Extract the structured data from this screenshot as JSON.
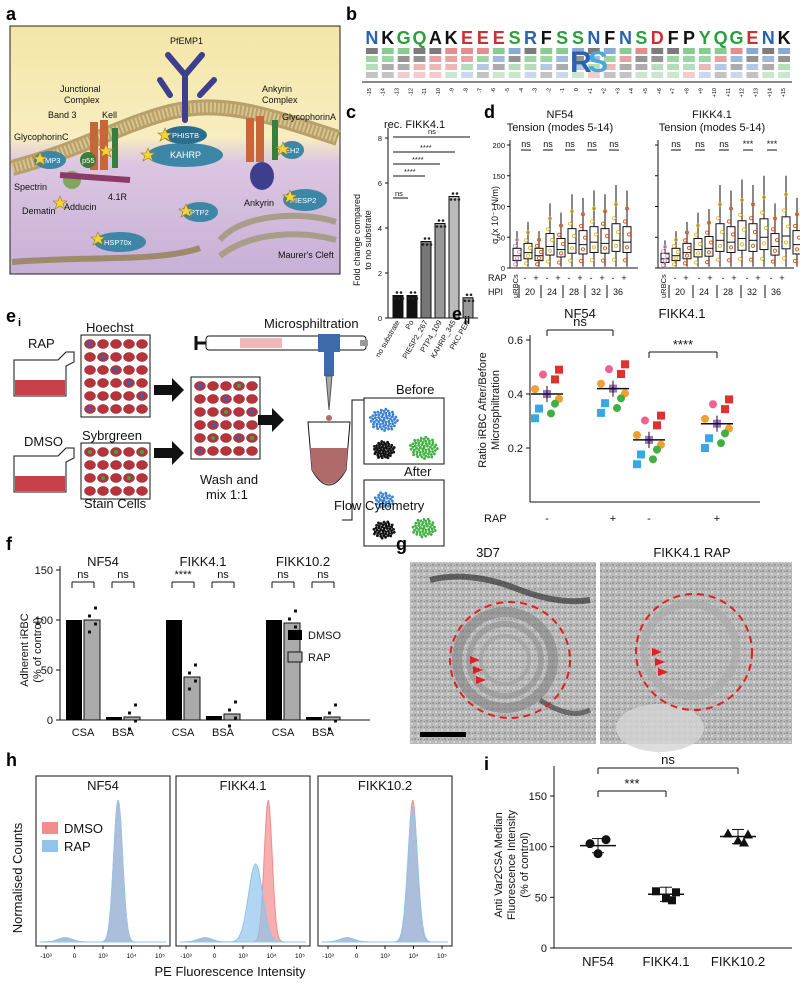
{
  "panels": {
    "a": {
      "letter": "a",
      "labels": {
        "pfemp1": "PfEMP1",
        "junctional": "Junctional",
        "complex_j": "Complex",
        "ankyrin_complex": "Ankyrin",
        "complex_a": "Complex",
        "band3": "Band 3",
        "kell": "Kell",
        "glycophorin_c": "GlycophorinC",
        "glycophorin_a": "GlycophorinA",
        "phistb": "PHISTB",
        "kahrp": "KAHRP",
        "emp3": "EMP3",
        "p55": "p55",
        "spectrin": "Spectrin",
        "r41": "4.1R",
        "adducin": "Adducin",
        "dematin": "Dematin",
        "ankyrin": "Ankyrin",
        "eh2": "EH2",
        "ptp2": "PTP2",
        "piesp2": "PIESP2",
        "hsp70x": "HSP70x",
        "maurers": "Maurer's Cleft"
      }
    },
    "b": {
      "letter": "b",
      "ticks": [
        "-15",
        "-14",
        "-13",
        "-12",
        "-11",
        "-10",
        "-9",
        "-8",
        "-7",
        "-6",
        "-5",
        "-4",
        "-3",
        "-2",
        "-1",
        "0",
        "+1",
        "+2",
        "+3",
        "+4",
        "+5",
        "+6",
        "+7",
        "+8",
        "+9",
        "+10",
        "+11",
        "+12",
        "+13",
        "+14",
        "+15"
      ],
      "top_letters": [
        "N",
        "K",
        "G",
        "Q",
        "A",
        "K",
        "E",
        "E",
        "E",
        "S",
        "R",
        "F",
        "S",
        "S",
        "N",
        "F",
        "N",
        "S",
        "D",
        "F",
        "P",
        "Y",
        "Q",
        "G",
        "E",
        "N",
        "K"
      ],
      "top_colors": [
        "#2a62b0",
        "#111111",
        "#2a9f3a",
        "#2a9f3a",
        "#111111",
        "#111111",
        "#c83232",
        "#c83232",
        "#c83232",
        "#2a9f3a",
        "#2a62b0",
        "#111111",
        "#2a9f3a",
        "#2a9f3a",
        "#2a62b0",
        "#111111",
        "#2a62b0",
        "#2a9f3a",
        "#c83232",
        "#111111",
        "#111111",
        "#2a9f3a",
        "#2a9f3a",
        "#2a9f3a",
        "#c83232",
        "#2a62b0",
        "#111111"
      ]
    },
    "c": {
      "letter": "c",
      "title": "rec. FIKK4.1",
      "ylabel1": "Fold change compared",
      "ylabel2": "to no substrate",
      "sig_ns1": "ns",
      "sig_ns2": "ns",
      "sig_stars": "****",
      "chart_data": {
        "type": "bar",
        "categories": [
          "no substrate",
          "Po",
          "PIESP2_267",
          "PTP4_109",
          "KAHRP_345",
          "PKC PEP"
        ],
        "values": [
          1.0,
          1.0,
          3.4,
          4.2,
          5.4,
          0.9
        ],
        "ylim": [
          0,
          8
        ],
        "yticks": [
          "0",
          "2",
          "4",
          "6",
          "8"
        ],
        "title": "rec. FIKK4.1"
      }
    },
    "d": {
      "letter": "d",
      "title_left1": "NF54",
      "title_left2": "Tension (modes 5-14)",
      "title_right1": "FIKK4.1",
      "title_right2": "Tension (modes 5-14)",
      "ylabel": "σ (x 10⁻⁷ N/m)",
      "rap_label": "RAP",
      "hpi_label": "HPI",
      "urbc_label": "uRBCs",
      "hpi": [
        "20",
        "24",
        "28",
        "32",
        "36"
      ],
      "minus": "-",
      "plus": "+",
      "sig_left": [
        "ns",
        "ns",
        "ns",
        "ns",
        "ns"
      ],
      "sig_right": [
        "ns",
        "ns",
        "ns",
        "***",
        "***"
      ],
      "chart_data": {
        "type": "box",
        "ylim": [
          0,
          200
        ],
        "yticks": [
          "0",
          "50",
          "100",
          "150",
          "200"
        ],
        "NF54_medians": [
          20,
          25,
          20,
          35,
          30,
          40,
          38,
          42,
          40,
          45,
          42
        ],
        "FIKK41_medians": [
          15,
          20,
          25,
          30,
          32,
          45,
          42,
          48,
          45,
          50,
          35,
          52,
          38
        ]
      }
    },
    "e": {
      "letter_i": "e",
      "sub_i": "i",
      "letter_ii": "e",
      "sub_ii": "ii",
      "rap": "RAP",
      "dmso": "DMSO",
      "hoechst": "Hoechst",
      "sybrgreen": "Sybrgreen",
      "stain_cells": "Stain Cells",
      "wash_mix": "Wash and",
      "wash_mix2": "mix 1:1",
      "microsphiltration": "Microsphiltration",
      "before": "Before",
      "after": "After",
      "flow": "Flow Cytometry",
      "chart_title_left": "NF54",
      "chart_title_right": "FIKK4.1",
      "ylabel1": "Ratio iRBC After/Before",
      "ylabel2": "Microsphiltration",
      "sig_left": "ns",
      "sig_right": "****",
      "rap_label": "RAP",
      "rap_values": [
        "-",
        "+",
        "-",
        "+"
      ],
      "chart_data": {
        "type": "scatter",
        "groups": [
          "NF54 -",
          "NF54 +",
          "FIKK4.1 -",
          "FIKK4.1 +"
        ],
        "means": [
          0.4,
          0.42,
          0.23,
          0.29
        ],
        "ylim": [
          0,
          0.6
        ],
        "yticks": [
          "0.2",
          "0.4",
          "0.6"
        ]
      }
    },
    "f": {
      "letter": "f",
      "ylabel1": "Adherent iRBC",
      "ylabel2": "(% of control)",
      "legend_dmso": "DMSO",
      "legend_rap": "RAP",
      "groups": [
        "NF54",
        "FIKK4.1",
        "FIKK10.2"
      ],
      "xlabels": [
        "CSA",
        "BSA",
        "CSA",
        "BSA",
        "CSA",
        "BSA"
      ],
      "sig": [
        "ns",
        "ns",
        "****",
        "ns",
        "ns",
        "ns"
      ],
      "chart_data": {
        "type": "bar",
        "categories": [
          "NF54 CSA",
          "NF54 BSA",
          "FIKK4.1 CSA",
          "FIKK4.1 BSA",
          "FIKK10.2 CSA",
          "FIKK10.2 BSA"
        ],
        "series": [
          {
            "name": "DMSO",
            "values": [
              100,
              3,
              100,
              4,
              100,
              3
            ]
          },
          {
            "name": "RAP",
            "values": [
              100,
              3,
              43,
              6,
              97,
              3
            ]
          }
        ],
        "ylim": [
          0,
          150
        ],
        "yticks": [
          "0",
          "50",
          "100",
          "150"
        ]
      }
    },
    "g": {
      "letter": "g",
      "left_title": "3D7",
      "right_title": "FIKK4.1 RAP"
    },
    "h": {
      "letter": "h",
      "ylabel": "Normalised Counts",
      "xlabel": "PE Fluorescence Intensity",
      "legend_dmso": "DMSO",
      "legend_rap": "RAP",
      "titles": [
        "NF54",
        "FIKK4.1",
        "FIKK10.2"
      ],
      "xticks": [
        "-10³",
        "0",
        "10³",
        "10⁴",
        "10⁵"
      ],
      "colors": {
        "dmso": "#f28b8b",
        "rap": "#8ec5ee"
      }
    },
    "i": {
      "letter": "i",
      "ylabel1": "Anti Var2CSA Median",
      "ylabel2": "Fluorescence Intensity",
      "ylabel3": "(% of control)",
      "sig_top": "ns",
      "sig_mid": "***",
      "chart_data": {
        "type": "scatter",
        "categories": [
          "NF54",
          "FIKK4.1",
          "FIKK10.2"
        ],
        "means": [
          101,
          53,
          110
        ],
        "ylim": [
          0,
          150
        ],
        "yticks": [
          "0",
          "50",
          "100",
          "150"
        ]
      }
    }
  }
}
